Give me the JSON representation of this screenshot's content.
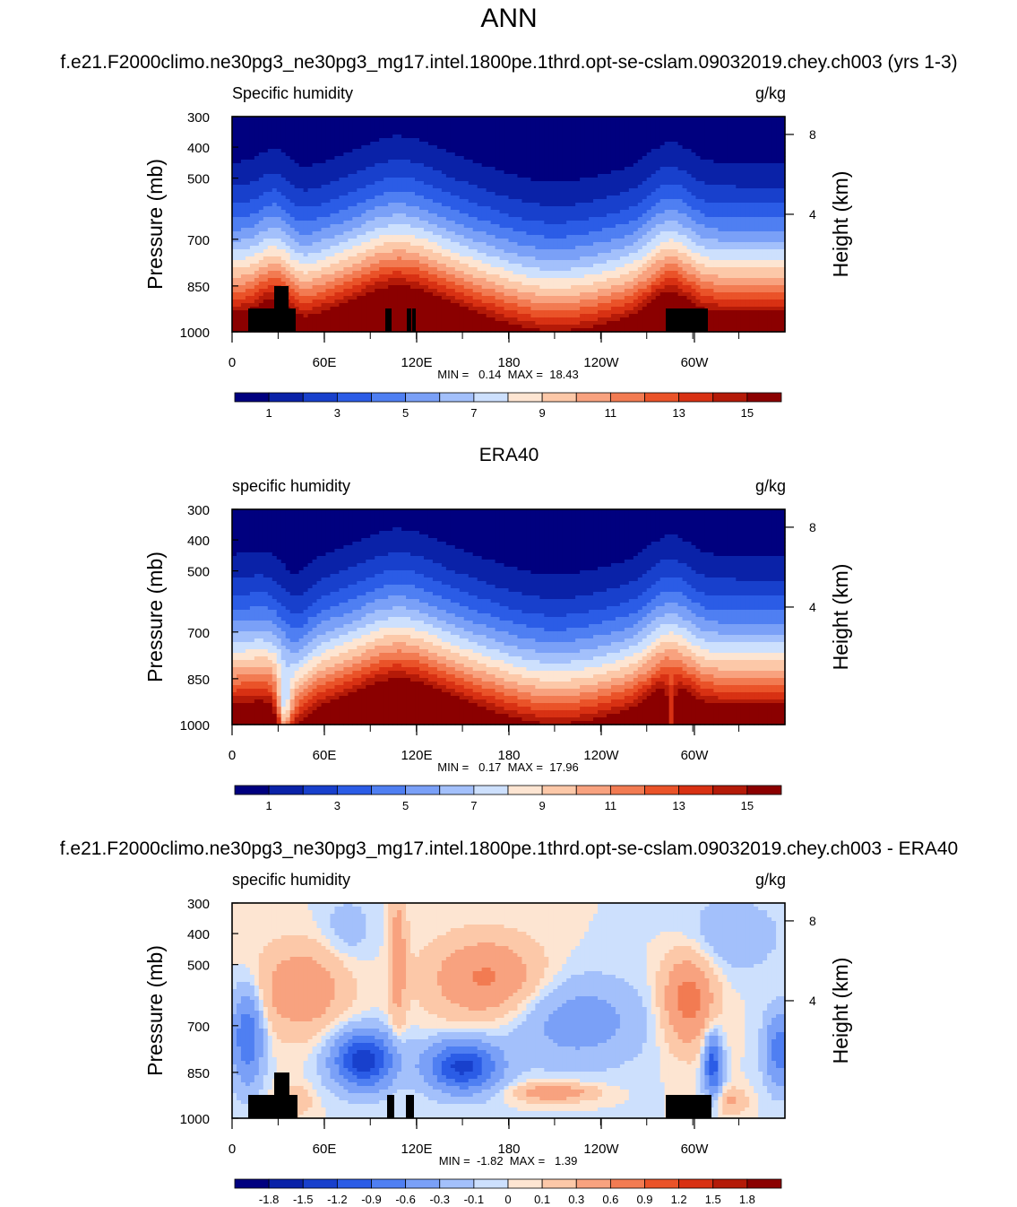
{
  "page": {
    "season": "ANN"
  },
  "colormaps": {
    "levels": [
      "#00007f",
      "#0a22a8",
      "#1840cc",
      "#2b5ce6",
      "#4f7ff2",
      "#7aa0f7",
      "#a3c0fb",
      "#cde0fd",
      "#fde5d2",
      "#fcc8a8",
      "#f8a27f",
      "#f27b52",
      "#ea5329",
      "#d83113",
      "#b41a08",
      "#8b0000"
    ]
  },
  "chart_data": [
    {
      "type": "heatmap",
      "panel_title": "f.e21.F2000climo.ne30pg3_ne30pg3_mg17.intel.1800pe.1thrd.opt-se-cslam.09032019.chey.ch003 (yrs 1-3)",
      "left_label": "Specific humidity",
      "right_label": "g/kg",
      "ylabel": "Pressure (mb)",
      "ylabel_right": "Height (km)",
      "x_ticks": [
        "0",
        "60E",
        "120E",
        "180",
        "120W",
        "60W"
      ],
      "y_ticks": [
        "300",
        "400",
        "500",
        "700",
        "850",
        "1000"
      ],
      "y_ticks_right": [
        "8",
        "4"
      ],
      "stats": "MIN =   0.14  MAX =  18.43",
      "colorbar_labels": [
        "1",
        "3",
        "5",
        "7",
        "9",
        "11",
        "13",
        "15"
      ],
      "ylim": [
        1000,
        300
      ],
      "xlim": [
        0,
        360
      ],
      "kind": "abs",
      "topography": true
    },
    {
      "type": "heatmap",
      "panel_title": "ERA40",
      "left_label": "specific humidity",
      "right_label": "g/kg",
      "ylabel": "Pressure (mb)",
      "ylabel_right": "Height (km)",
      "x_ticks": [
        "0",
        "60E",
        "120E",
        "180",
        "120W",
        "60W"
      ],
      "y_ticks": [
        "300",
        "400",
        "500",
        "700",
        "850",
        "1000"
      ],
      "y_ticks_right": [
        "8",
        "4"
      ],
      "stats": "MIN =   0.17  MAX =  17.96",
      "colorbar_labels": [
        "1",
        "3",
        "5",
        "7",
        "9",
        "11",
        "13",
        "15"
      ],
      "ylim": [
        1000,
        300
      ],
      "xlim": [
        0,
        360
      ],
      "kind": "obs",
      "topography": false
    },
    {
      "type": "heatmap",
      "panel_title": "f.e21.F2000climo.ne30pg3_ne30pg3_mg17.intel.1800pe.1thrd.opt-se-cslam.09032019.chey.ch003 - ERA40",
      "left_label": "specific humidity",
      "right_label": "g/kg",
      "ylabel": "Pressure (mb)",
      "ylabel_right": "Height (km)",
      "x_ticks": [
        "0",
        "60E",
        "120E",
        "180",
        "120W",
        "60W"
      ],
      "y_ticks": [
        "300",
        "400",
        "500",
        "700",
        "850",
        "1000"
      ],
      "y_ticks_right": [
        "8",
        "4"
      ],
      "stats": "MIN =  -1.82  MAX =   1.39",
      "colorbar_labels": [
        "-1.8",
        "-1.5",
        "-1.2",
        "-0.9",
        "-0.6",
        "-0.3",
        "-0.1",
        "0",
        "0.1",
        "0.3",
        "0.6",
        "0.9",
        "1.2",
        "1.5",
        "1.8"
      ],
      "ylim": [
        1000,
        300
      ],
      "xlim": [
        0,
        360
      ],
      "kind": "diff",
      "topography": true
    }
  ]
}
